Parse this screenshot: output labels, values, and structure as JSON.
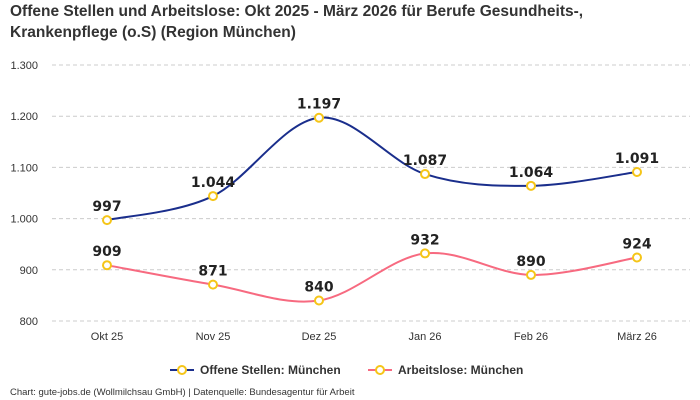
{
  "chart_data": {
    "type": "line",
    "title": "Offene Stellen und Arbeitslose: Okt 2025 - März 2026 für Berufe Gesundheits-, Krankenpflege (o.S) (Region München)",
    "categories": [
      "Okt 25",
      "Nov 25",
      "Dez 25",
      "Jan 26",
      "Feb 26",
      "März 26"
    ],
    "series": [
      {
        "name": "Offene Stellen: München",
        "values": [
          997,
          1044,
          1197,
          1087,
          1064,
          1091
        ],
        "labels": [
          "997",
          "1.044",
          "1.197",
          "1.087",
          "1.064",
          "1.091"
        ],
        "color": "#1a2e8c",
        "marker_color": "#f5c518"
      },
      {
        "name": "Arbeitslose: München",
        "values": [
          909,
          871,
          840,
          932,
          890,
          924
        ],
        "labels": [
          "909",
          "871",
          "840",
          "932",
          "890",
          "924"
        ],
        "color": "#f76a80",
        "marker_color": "#f5c518"
      }
    ],
    "ylim": [
      800,
      1300
    ],
    "yticks": [
      800,
      900,
      1000,
      1100,
      1200,
      1300
    ],
    "ytick_labels": [
      "800",
      "900",
      "1.000",
      "1.100",
      "1.200",
      "1.300"
    ],
    "grid": true,
    "legend": "bottom",
    "smooth": true
  },
  "footer": "Chart: gute-jobs.de (Wollmilchsau GmbH) | Datenquelle: Bundesagentur für Arbeit"
}
